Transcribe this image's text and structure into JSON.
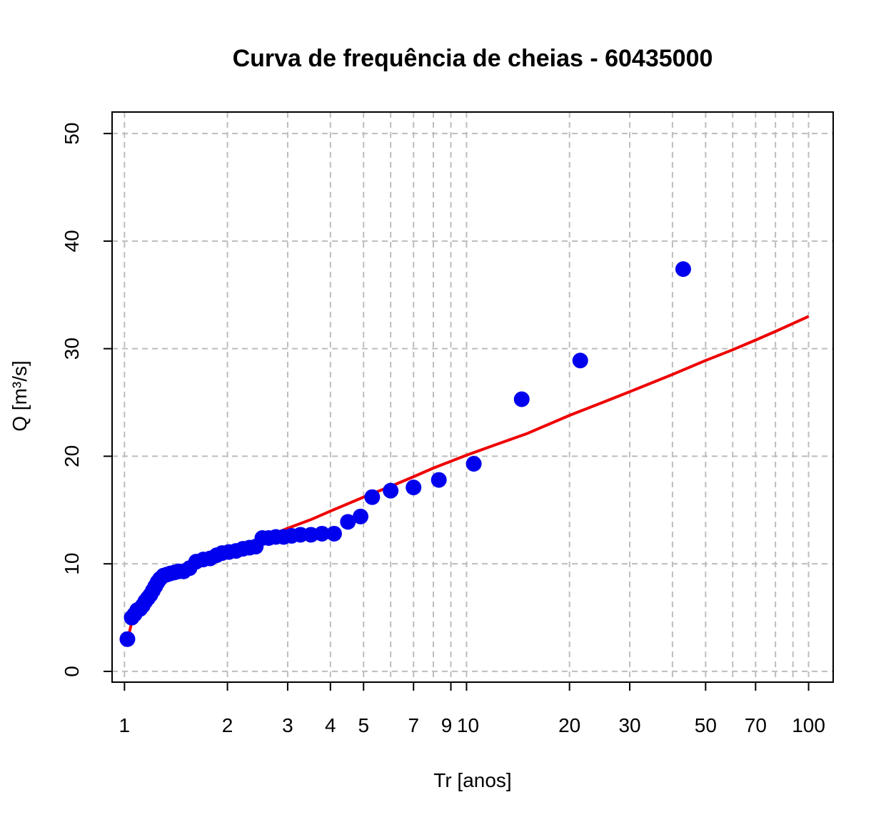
{
  "chart_data": {
    "type": "scatter",
    "title": "Curva de frequência de cheias - 60435000",
    "xlabel": "Tr [anos]",
    "ylabel": "Q [m³/s]",
    "x_scale": "log",
    "xlim": [
      0.92,
      118
    ],
    "ylim": [
      -1,
      52
    ],
    "grid": true,
    "x_ticks": [
      1,
      2,
      3,
      4,
      5,
      7,
      9,
      10,
      20,
      30,
      50,
      70,
      100
    ],
    "x_tick_labels": [
      "1",
      "2",
      "3",
      "4",
      "5",
      "7",
      "9",
      "10",
      "20",
      "30",
      "50",
      "70",
      "100"
    ],
    "x_grid": [
      1,
      2,
      3,
      4,
      5,
      6,
      7,
      8,
      9,
      10,
      20,
      30,
      40,
      50,
      60,
      70,
      80,
      90,
      100
    ],
    "y_ticks": [
      0,
      10,
      20,
      30,
      40,
      50
    ],
    "y_tick_labels": [
      "0",
      "10",
      "20",
      "30",
      "40",
      "50"
    ],
    "series": [
      {
        "kind": "points",
        "color": "#0000ee",
        "x": [
          1.02,
          1.05,
          1.07,
          1.09,
          1.11,
          1.13,
          1.15,
          1.17,
          1.19,
          1.21,
          1.23,
          1.25,
          1.27,
          1.3,
          1.33,
          1.36,
          1.4,
          1.44,
          1.49,
          1.55,
          1.62,
          1.7,
          1.78,
          1.86,
          1.93,
          2.02,
          2.12,
          2.22,
          2.32,
          2.42,
          2.53,
          2.64,
          2.77,
          2.92,
          3.08,
          3.27,
          3.51,
          3.78,
          4.1,
          4.5,
          4.9,
          5.3,
          6.0,
          7.0,
          8.3,
          10.5,
          14.5,
          21.5,
          43.0
        ],
        "y": [
          3.0,
          5.0,
          5.3,
          5.7,
          5.8,
          6.1,
          6.5,
          6.8,
          7.1,
          7.5,
          7.9,
          8.3,
          8.6,
          8.9,
          9.0,
          9.1,
          9.2,
          9.3,
          9.3,
          9.6,
          10.2,
          10.4,
          10.5,
          10.8,
          11.0,
          11.1,
          11.2,
          11.4,
          11.5,
          11.6,
          12.4,
          12.4,
          12.5,
          12.5,
          12.6,
          12.7,
          12.7,
          12.8,
          12.8,
          13.9,
          14.4,
          16.2,
          16.8,
          17.1,
          17.8,
          19.3,
          25.3,
          28.9,
          37.4
        ]
      },
      {
        "kind": "line",
        "color": "#ee0000",
        "x": [
          1.03,
          1.05,
          1.08,
          1.12,
          1.17,
          1.23,
          1.3,
          1.4,
          1.5,
          1.65,
          1.8,
          2.0,
          2.3,
          2.6,
          3.0,
          3.5,
          4.0,
          5.0,
          6.0,
          7.0,
          8.0,
          10.0,
          12.0,
          15.0,
          20.0,
          25.0,
          30.0,
          40.0,
          50.0,
          60.0,
          70.0,
          80.0,
          100.0
        ],
        "y": [
          3.4,
          4.6,
          5.4,
          6.2,
          6.9,
          7.6,
          8.2,
          8.8,
          9.3,
          9.9,
          10.4,
          11.0,
          11.8,
          12.5,
          13.3,
          14.1,
          14.9,
          16.2,
          17.2,
          18.1,
          18.9,
          20.1,
          21.0,
          22.1,
          23.8,
          25.0,
          26.0,
          27.6,
          28.9,
          29.9,
          30.8,
          31.6,
          33.0
        ]
      }
    ]
  }
}
